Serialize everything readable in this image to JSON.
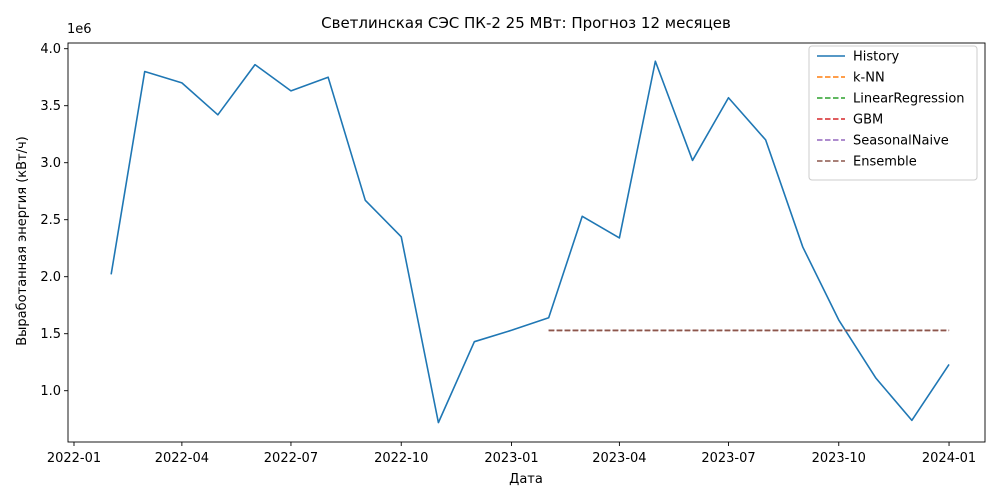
{
  "chart_data": {
    "type": "line",
    "title": "Светлинская СЭС ПК-2 25 МВт: Прогноз 12 месяцев",
    "xlabel": "Дата",
    "ylabel": "Выработанная энергия (кВт/ч)",
    "y_multiplier": "1e6",
    "xlim": [
      "2021-12-27",
      "2024-01-31"
    ],
    "ylim": [
      0.55,
      4.05
    ],
    "x_ticks": [
      {
        "date": "2022-01-01",
        "label": "2022-01"
      },
      {
        "date": "2022-04-01",
        "label": "2022-04"
      },
      {
        "date": "2022-07-01",
        "label": "2022-07"
      },
      {
        "date": "2022-10-01",
        "label": "2022-10"
      },
      {
        "date": "2023-01-01",
        "label": "2023-01"
      },
      {
        "date": "2023-04-01",
        "label": "2023-04"
      },
      {
        "date": "2023-07-01",
        "label": "2023-07"
      },
      {
        "date": "2023-10-01",
        "label": "2023-10"
      },
      {
        "date": "2024-01-01",
        "label": "2024-01"
      }
    ],
    "y_ticks": [
      {
        "value": 1.0,
        "label": "1.0"
      },
      {
        "value": 1.5,
        "label": "1.5"
      },
      {
        "value": 2.0,
        "label": "2.0"
      },
      {
        "value": 2.5,
        "label": "2.5"
      },
      {
        "value": 3.0,
        "label": "3.0"
      },
      {
        "value": 3.5,
        "label": "3.5"
      },
      {
        "value": 4.0,
        "label": "4.0"
      }
    ],
    "grid": false,
    "legend_position": "top-right",
    "series": [
      {
        "name": "History",
        "color": "#1f77b4",
        "style": "solid",
        "points": [
          [
            "2022-02-01",
            2.02
          ],
          [
            "2022-03-01",
            3.8
          ],
          [
            "2022-04-01",
            3.7
          ],
          [
            "2022-05-01",
            3.42
          ],
          [
            "2022-06-01",
            3.86
          ],
          [
            "2022-07-01",
            3.63
          ],
          [
            "2022-08-01",
            3.75
          ],
          [
            "2022-09-01",
            2.67
          ],
          [
            "2022-10-01",
            2.35
          ],
          [
            "2022-11-01",
            0.72
          ],
          [
            "2022-12-01",
            1.43
          ],
          [
            "2023-01-01",
            1.53
          ],
          [
            "2023-02-01",
            1.64
          ],
          [
            "2023-03-01",
            2.53
          ],
          [
            "2023-04-01",
            2.34
          ],
          [
            "2023-05-01",
            3.89
          ],
          [
            "2023-06-01",
            3.02
          ],
          [
            "2023-07-01",
            3.57
          ],
          [
            "2023-08-01",
            3.2
          ],
          [
            "2023-09-01",
            2.26
          ],
          [
            "2023-10-01",
            1.62
          ],
          [
            "2023-11-01",
            1.11
          ],
          [
            "2023-12-01",
            0.74
          ],
          [
            "2024-01-01",
            1.23
          ]
        ]
      },
      {
        "name": "k-NN",
        "color": "#ff7f0e",
        "style": "dashed",
        "points": [
          [
            "2023-02-01",
            1.53
          ],
          [
            "2024-01-01",
            1.53
          ]
        ]
      },
      {
        "name": "LinearRegression",
        "color": "#2ca02c",
        "style": "dashed",
        "points": [
          [
            "2023-02-01",
            1.53
          ],
          [
            "2024-01-01",
            1.53
          ]
        ]
      },
      {
        "name": "GBM",
        "color": "#d62728",
        "style": "dashed",
        "points": [
          [
            "2023-02-01",
            1.53
          ],
          [
            "2024-01-01",
            1.53
          ]
        ]
      },
      {
        "name": "SeasonalNaive",
        "color": "#9467bd",
        "style": "dashed",
        "points": [
          [
            "2023-02-01",
            1.53
          ],
          [
            "2024-01-01",
            1.53
          ]
        ]
      },
      {
        "name": "Ensemble",
        "color": "#8c564b",
        "style": "dashed",
        "points": [
          [
            "2023-02-01",
            1.53
          ],
          [
            "2024-01-01",
            1.53
          ]
        ]
      }
    ]
  }
}
